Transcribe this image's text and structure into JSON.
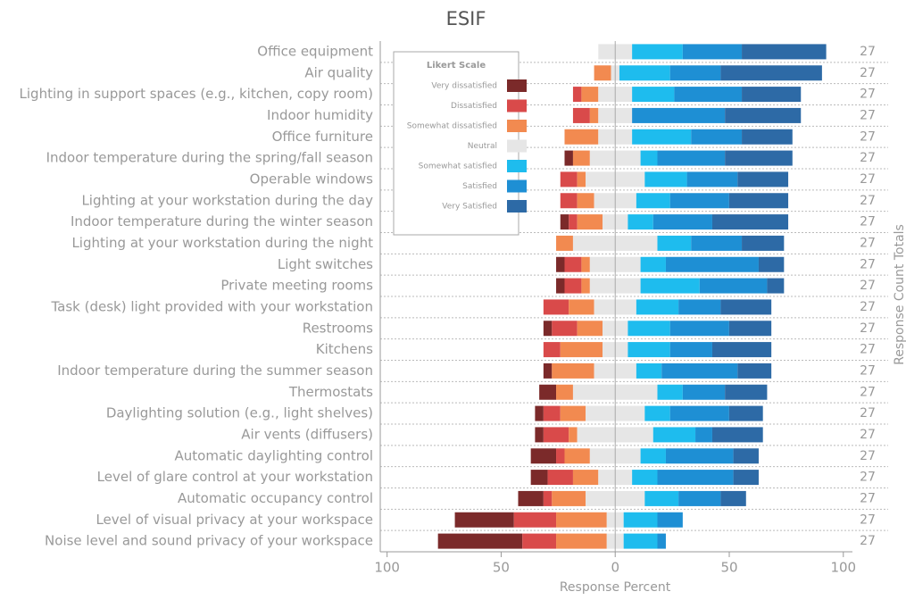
{
  "chart_data": {
    "type": "diverging_bar",
    "title": "ESIF",
    "xlabel": "Response Percent",
    "y2label": "Response Count Totals",
    "legend_title": "Likert Scale",
    "legend": "upper left",
    "xlim": [
      -103,
      104
    ],
    "xticks": [
      {
        "value": -100,
        "label": "100"
      },
      {
        "value": -50,
        "label": "50"
      },
      0,
      50,
      100
    ],
    "categories": [
      "Office equipment",
      "Air quality",
      "Lighting in support spaces (e.g., kitchen, copy room)",
      "Indoor humidity",
      "Office furniture",
      "Indoor temperature during the spring/fall season",
      "Operable windows",
      "Lighting at your workstation during the day",
      "Indoor temperature during the winter season",
      "Lighting at your workstation during the night",
      "Light switches",
      "Private meeting rooms",
      "Task (desk) light provided with your workstation",
      "Restrooms",
      "Kitchens",
      "Indoor temperature during the summer season",
      "Thermostats",
      "Daylighting solution (e.g., light shelves)",
      "Air vents (diffusers)",
      "Automatic daylighting control",
      "Level of glare control at your workstation",
      "Automatic occupancy control",
      "Level of visual privacy at your workspace",
      "Noise level and sound privacy of your workspace"
    ],
    "totals": [
      27,
      27,
      27,
      27,
      27,
      27,
      27,
      27,
      27,
      27,
      27,
      27,
      27,
      27,
      27,
      27,
      27,
      27,
      27,
      27,
      27,
      27,
      27,
      27
    ],
    "series": [
      {
        "name": "Very dissatisfied",
        "color": "#7b2a2a",
        "values": [
          0,
          0,
          0,
          0,
          0,
          3.7,
          0,
          0,
          3.7,
          0,
          3.7,
          3.7,
          0,
          3.7,
          0,
          3.7,
          7.4,
          3.7,
          3.7,
          11.1,
          7.4,
          11.1,
          25.9,
          37.0
        ]
      },
      {
        "name": "Dissatisfied",
        "color": "#d94a4a",
        "values": [
          0,
          0,
          3.7,
          7.4,
          0,
          0,
          7.4,
          7.4,
          3.7,
          0,
          7.4,
          7.4,
          11.1,
          11.1,
          7.4,
          0,
          0,
          7.4,
          11.1,
          3.7,
          11.1,
          3.7,
          18.5,
          14.8
        ]
      },
      {
        "name": "Somewhat dissatisfied",
        "color": "#f28a50",
        "values": [
          0,
          7.4,
          7.4,
          3.7,
          14.8,
          7.4,
          3.7,
          7.4,
          11.1,
          7.4,
          3.7,
          3.7,
          11.1,
          11.1,
          18.5,
          18.5,
          7.4,
          11.1,
          3.7,
          11.1,
          11.1,
          14.8,
          22.2,
          22.2
        ]
      },
      {
        "name": "Neutral",
        "color": "#e6e6e6",
        "values": [
          14.8,
          3.7,
          14.8,
          14.8,
          14.8,
          22.2,
          25.9,
          18.5,
          11.1,
          37.0,
          22.2,
          22.2,
          18.5,
          11.1,
          11.1,
          18.5,
          37.0,
          25.9,
          33.3,
          22.2,
          14.8,
          25.9,
          7.4,
          7.4
        ]
      },
      {
        "name": "Somewhat satisfied",
        "color": "#1ebcee",
        "values": [
          22.2,
          22.2,
          18.5,
          0,
          25.9,
          7.4,
          18.5,
          14.8,
          11.1,
          14.8,
          11.1,
          25.9,
          18.5,
          18.5,
          18.5,
          11.1,
          11.1,
          11.1,
          18.5,
          11.1,
          11.1,
          14.8,
          14.8,
          14.8
        ]
      },
      {
        "name": "Satisfied",
        "color": "#1e8fd4",
        "values": [
          25.9,
          22.2,
          29.6,
          40.7,
          22.2,
          29.6,
          22.2,
          25.9,
          25.9,
          22.2,
          40.7,
          29.6,
          18.5,
          25.9,
          18.5,
          33.3,
          18.5,
          25.9,
          7.4,
          29.6,
          33.3,
          18.5,
          11.1,
          3.7
        ]
      },
      {
        "name": "Very Satisfied",
        "color": "#2d6aa6",
        "values": [
          37.0,
          44.4,
          25.9,
          33.3,
          22.2,
          29.6,
          22.2,
          25.9,
          33.3,
          18.5,
          11.1,
          7.4,
          22.2,
          18.5,
          25.9,
          14.8,
          18.5,
          14.8,
          22.2,
          11.1,
          11.1,
          11.1,
          0,
          0
        ]
      }
    ]
  }
}
